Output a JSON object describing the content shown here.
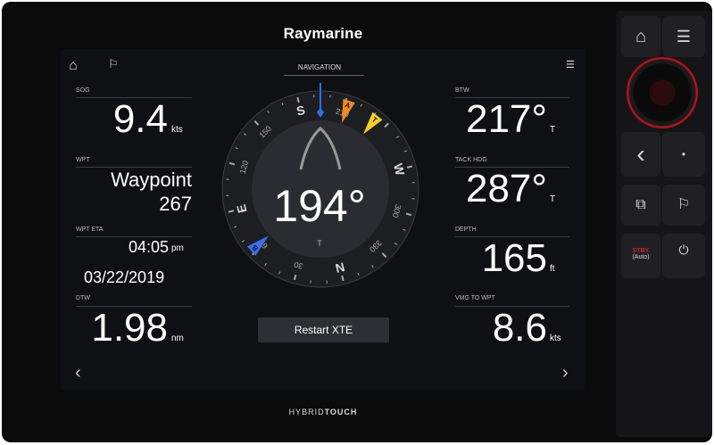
{
  "brand": {
    "logo": "Raymarine",
    "bezel_label_a": "HYBRID",
    "bezel_label_b": "TOUCH"
  },
  "header": {
    "title": "NAVIGATION",
    "home_icon": "home-icon",
    "waypoint_icon": "waypoint-flag-icon",
    "menu_icon": "menu-icon"
  },
  "left": {
    "sog": {
      "label": "SOG",
      "value": "9.4",
      "unit": "kts"
    },
    "wpt": {
      "label": "WPT",
      "value_line1": "Waypoint",
      "value_line2": "267"
    },
    "eta": {
      "label": "WPT ETA",
      "time": "04:05",
      "ampm": "pm",
      "date": "03/22/2019"
    },
    "dtw": {
      "label": "DTW",
      "value": "1.98",
      "unit": "nm"
    }
  },
  "right": {
    "btw": {
      "label": "BTW",
      "value": "217°",
      "ref": "T"
    },
    "tack": {
      "label": "TACK HDG",
      "value": "287°",
      "ref": "T"
    },
    "depth": {
      "label": "DEPTH",
      "value": "165",
      "unit": "ft"
    },
    "vmg": {
      "label": "VMG TO WPT",
      "value": "8.6",
      "unit": "kts"
    }
  },
  "compass": {
    "heading": 194,
    "heading_text": "194°",
    "ref": "T",
    "labels": [
      {
        "b": 30,
        "t": "30"
      },
      {
        "b": 60,
        "t": "60"
      },
      {
        "b": 90,
        "t": "E"
      },
      {
        "b": 120,
        "t": "120"
      },
      {
        "b": 150,
        "t": "150"
      },
      {
        "b": 180,
        "t": "S"
      },
      {
        "b": 210,
        "t": "210"
      },
      {
        "b": 270,
        "t": "W"
      },
      {
        "b": 300,
        "t": "300"
      },
      {
        "b": 330,
        "t": "330"
      },
      {
        "b": 360,
        "t": "N"
      }
    ],
    "markers": [
      {
        "b": 212,
        "t": "A",
        "color": "#f08a1c"
      },
      {
        "b": 232,
        "t": "T",
        "color": "#f5d020"
      },
      {
        "b": 62,
        "t": "B",
        "color": "#3a6ff0"
      }
    ],
    "heading_color": "#2d6cf0"
  },
  "restart_label": "Restart XTE",
  "nav": {
    "prev": "‹",
    "next": "›"
  },
  "keys": {
    "home": "⌂",
    "menu": "☰",
    "back": "‹",
    "dot": "•",
    "stby": "STBY",
    "auto": "(Auto)",
    "power": "⏻"
  },
  "colors": {
    "accent_red": "#c0141c"
  }
}
